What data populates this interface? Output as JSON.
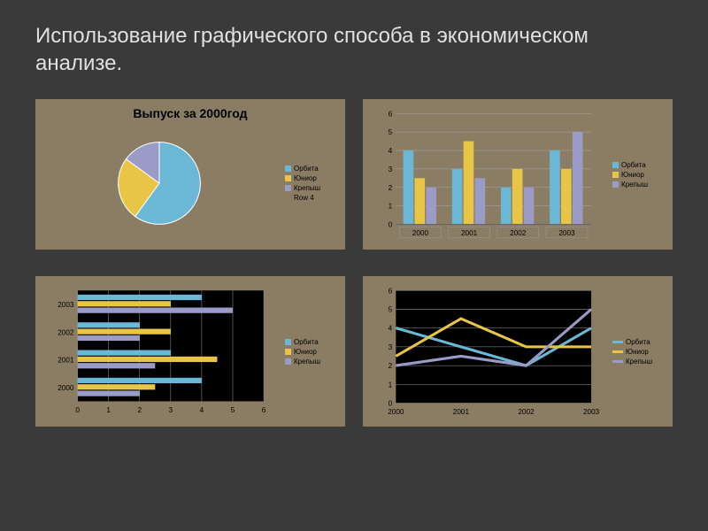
{
  "title": "Использование графического способа в экономическом анализе.",
  "colors": {
    "panel_bg": "#8a7d64",
    "dark_bg": "#000000",
    "orbita": "#6bb8d6",
    "yunior": "#e8c547",
    "krepysh": "#9b9bc7",
    "row4": "#8a7d64"
  },
  "pie_chart": {
    "type": "pie",
    "title": "Выпуск за 2000год",
    "slices": [
      {
        "label": "Орбита",
        "value": 60,
        "color": "#6bb8d6"
      },
      {
        "label": "Юниор",
        "value": 25,
        "color": "#e8c547"
      },
      {
        "label": "Крепыш",
        "value": 15,
        "color": "#9b9bc7"
      },
      {
        "label": "Row 4",
        "value": 0,
        "color": "#8a7d64"
      }
    ],
    "legend": [
      "Орбита",
      "Юниор",
      "Крепыш",
      "Row 4"
    ]
  },
  "bar_chart": {
    "type": "bar",
    "categories": [
      "2000",
      "2001",
      "2002",
      "2003"
    ],
    "series": [
      {
        "name": "Орбита",
        "color": "#6bb8d6",
        "values": [
          4,
          3,
          2,
          4
        ]
      },
      {
        "name": "Юниор",
        "color": "#e8c547",
        "values": [
          2.5,
          4.5,
          3,
          3
        ]
      },
      {
        "name": "Крепыш",
        "color": "#9b9bc7",
        "values": [
          2,
          2.5,
          2,
          5
        ]
      }
    ],
    "ylim": [
      0,
      6
    ],
    "ytick_step": 1,
    "legend": [
      "Орбита",
      "Юниор",
      "Крепыш"
    ]
  },
  "hbar_chart": {
    "type": "hbar",
    "categories": [
      "2003",
      "2002",
      "2001",
      "2000"
    ],
    "series": [
      {
        "name": "Орбита",
        "color": "#6bb8d6",
        "values": [
          4,
          2,
          3,
          4
        ]
      },
      {
        "name": "Юниор",
        "color": "#e8c547",
        "values": [
          3,
          3,
          4.5,
          2.5
        ]
      },
      {
        "name": "Крепыш",
        "color": "#9b9bc7",
        "values": [
          5,
          2,
          2.5,
          2
        ]
      }
    ],
    "xlim": [
      0,
      6
    ],
    "xtick_step": 1,
    "plot_bg": "#000000",
    "legend": [
      "Орбита",
      "Юниор",
      "Крепыш"
    ]
  },
  "line_chart": {
    "type": "line",
    "categories": [
      "2000",
      "2001",
      "2002",
      "2003"
    ],
    "series": [
      {
        "name": "Орбита",
        "color": "#6bb8d6",
        "values": [
          4,
          3,
          2,
          4
        ]
      },
      {
        "name": "Юниор",
        "color": "#e8c547",
        "values": [
          2.5,
          4.5,
          3,
          3
        ]
      },
      {
        "name": "Крепыш",
        "color": "#9b9bc7",
        "values": [
          2,
          2.5,
          2,
          5
        ]
      }
    ],
    "ylim": [
      0,
      6
    ],
    "ytick_step": 1,
    "plot_bg": "#000000",
    "line_width": 3,
    "legend": [
      "Орбита",
      "Юниор",
      "Крепыш"
    ]
  }
}
